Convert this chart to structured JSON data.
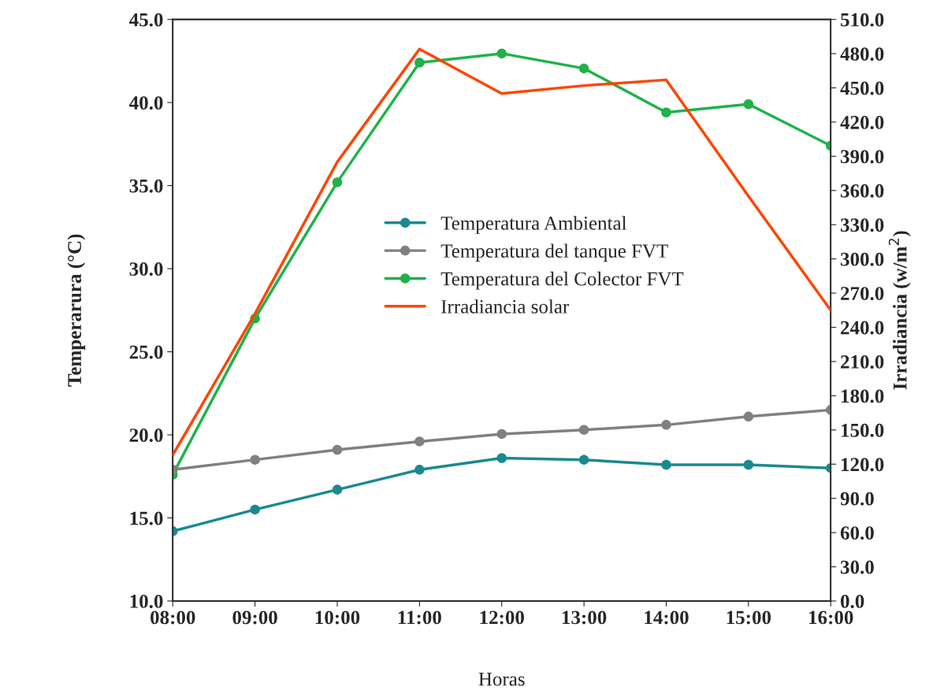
{
  "chart_data": {
    "type": "line",
    "xlabel": "Horas",
    "ylabel": "Temperarura (°C)",
    "y2label": "Irradiancia (w/m$^{2}$)",
    "categories": [
      "08:00",
      "09:00",
      "10:00",
      "11:00",
      "12:00",
      "13:00",
      "14:00",
      "15:00",
      "16:00"
    ],
    "series": [
      {
        "name": "Temperatura Ambiental",
        "color": "#1a8a8e",
        "marker": "circle",
        "values": [
          14.2,
          15.5,
          16.7,
          17.9,
          18.6,
          18.5,
          18.2,
          18.2,
          18.0
        ]
      },
      {
        "name": "Temperatura del tanque FVT",
        "color": "#808080",
        "marker": "circle",
        "values": [
          17.9,
          18.5,
          19.1,
          19.6,
          20.05,
          20.3,
          20.6,
          21.1,
          21.5
        ]
      },
      {
        "name": "Temperatura del Colector FVT",
        "color": "#1fb24a",
        "marker": "circle",
        "values": [
          17.6,
          27.0,
          35.2,
          42.4,
          42.95,
          42.05,
          39.4,
          39.9,
          37.4
        ]
      },
      {
        "name": "Irradiancia solar",
        "color": "#ff4500",
        "marker": "none",
        "axis": "y2",
        "values": [
          128,
          252,
          385,
          484,
          445,
          452,
          457,
          355,
          255
        ]
      }
    ],
    "ylim": [
      10,
      45
    ],
    "yticks": [
      {
        "value": 10,
        "label": "10.0"
      },
      {
        "value": 15,
        "label": "15.0"
      },
      {
        "value": 20,
        "label": "20.0"
      },
      {
        "value": 25,
        "label": "25.0"
      },
      {
        "value": 30,
        "label": "30.0"
      },
      {
        "value": 35,
        "label": "35.0"
      },
      {
        "value": 40,
        "label": "40.0"
      },
      {
        "value": 45,
        "label": "45.0"
      }
    ],
    "y2lim": [
      0,
      510
    ],
    "y2ticks": [
      {
        "value": 0,
        "label": "0.0"
      },
      {
        "value": 30,
        "label": "30.0"
      },
      {
        "value": 60,
        "label": "60.0"
      },
      {
        "value": 90,
        "label": "90.0"
      },
      {
        "value": 120,
        "label": "120.0"
      },
      {
        "value": 150,
        "label": "150.0"
      },
      {
        "value": 180,
        "label": "180.0"
      },
      {
        "value": 210,
        "label": "210.0"
      },
      {
        "value": 240,
        "label": "240.0"
      },
      {
        "value": 270,
        "label": "270.0"
      },
      {
        "value": 300,
        "label": "300.0"
      },
      {
        "value": 330,
        "label": "330.0"
      },
      {
        "value": 360,
        "label": "360.0"
      },
      {
        "value": 390,
        "label": "390.0"
      },
      {
        "value": 420,
        "label": "420.0"
      },
      {
        "value": 450,
        "label": "450.0"
      },
      {
        "value": 480,
        "label": "480.0"
      },
      {
        "value": 510,
        "label": "510.0"
      }
    ],
    "grid": false,
    "legend": "center"
  }
}
